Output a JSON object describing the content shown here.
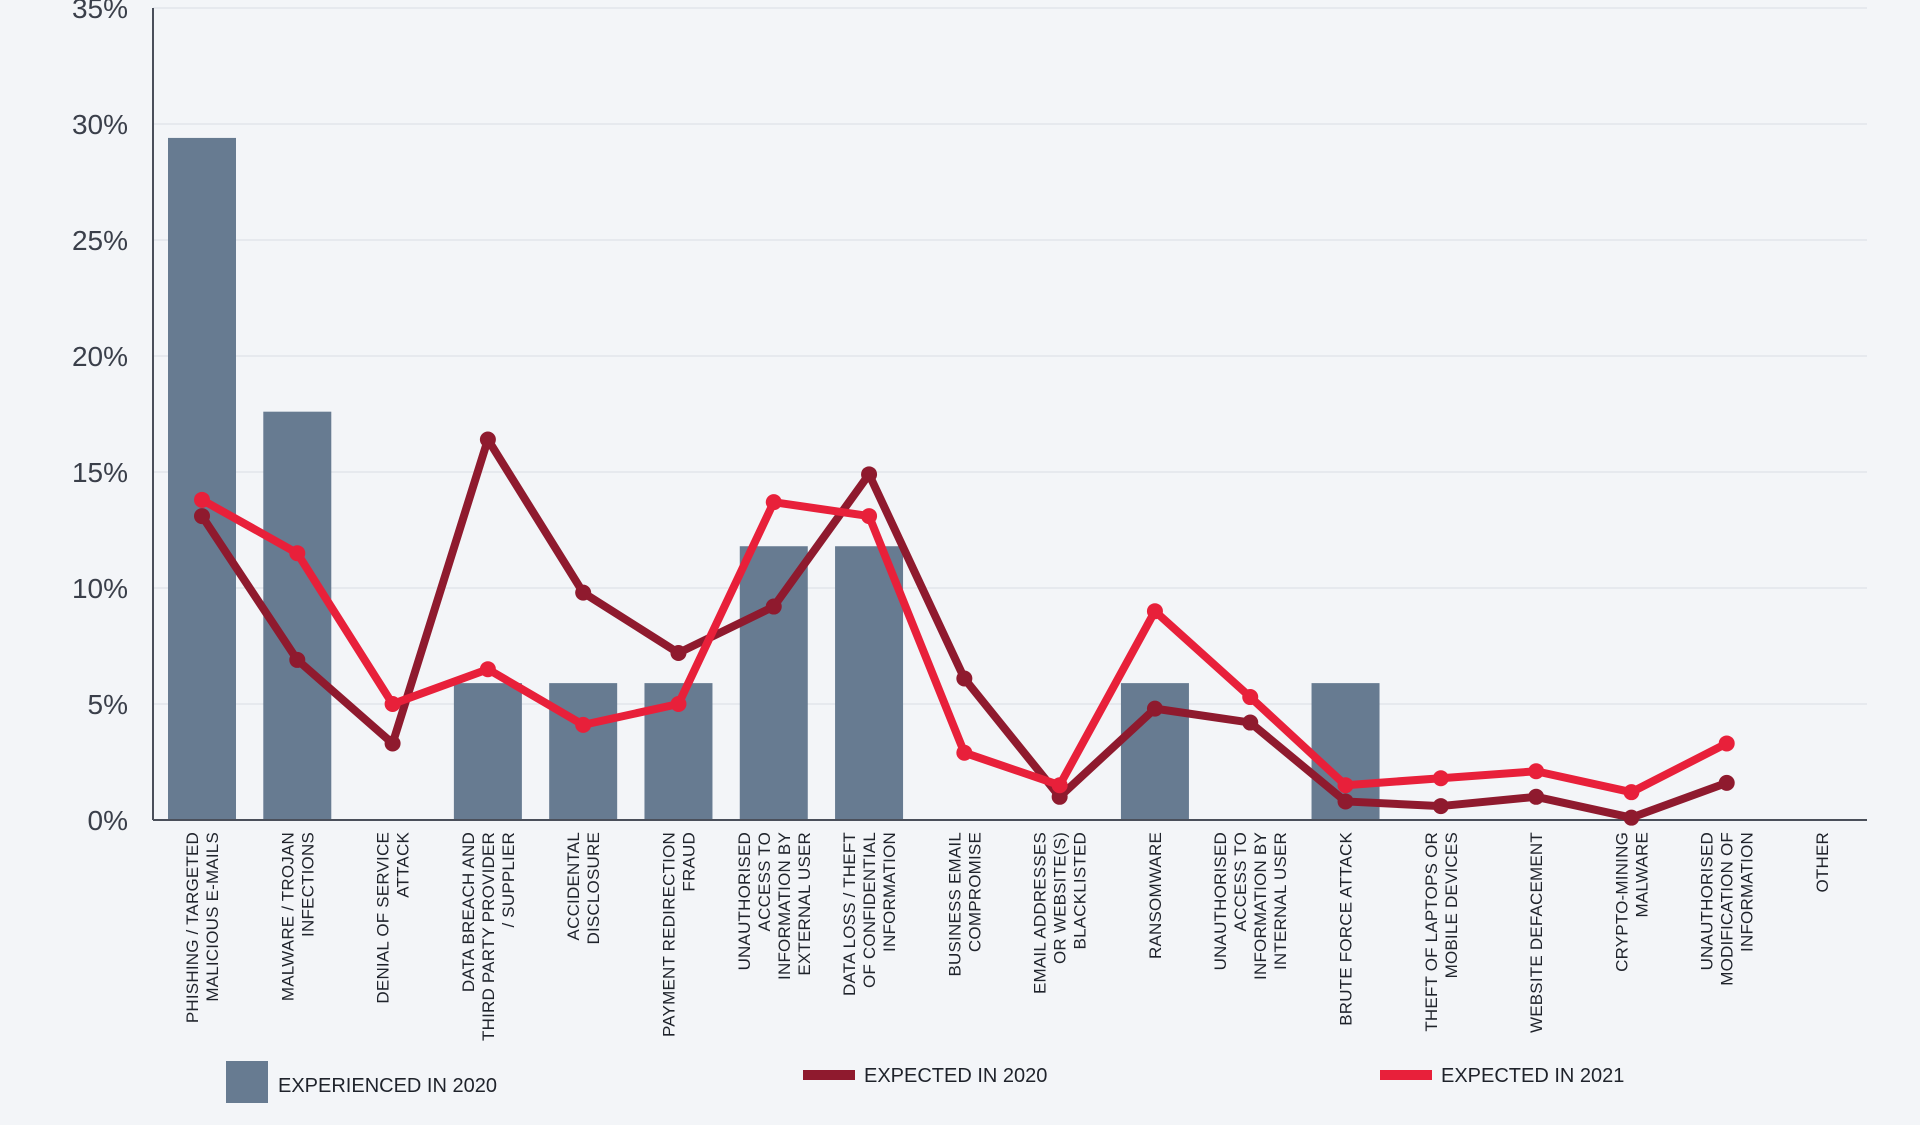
{
  "chart_data": {
    "type": "bar",
    "title": "",
    "xlabel": "",
    "ylabel": "",
    "ylim": [
      0,
      35
    ],
    "yticks": [
      "0%",
      "5%",
      "10%",
      "15%",
      "20%",
      "25%",
      "30%",
      "35%"
    ],
    "grid": true,
    "legend_position": "bottom",
    "categories": [
      [
        "PHISHING / TARGETED",
        "MALICIOUS E-MAILS"
      ],
      [
        "MALWARE / TROJAN",
        "INFECTIONS"
      ],
      [
        "DENIAL OF SERVICE",
        "ATTACK"
      ],
      [
        "DATA BREACH AND",
        "THIRD PARTY PROVIDER",
        "/ SUPPLIER"
      ],
      [
        "ACCIDENTAL",
        "DISCLOSURE"
      ],
      [
        "PAYMENT REDIRECTION",
        "FRAUD"
      ],
      [
        "UNAUTHORISED",
        "ACCESS TO",
        "INFORMATION BY",
        "EXTERNAL USER"
      ],
      [
        "DATA LOSS / THEFT",
        "OF CONFIDENTIAL",
        "INFORMATION"
      ],
      [
        "BUSINESS EMAIL",
        "COMPROMISE"
      ],
      [
        "EMAIL ADDRESSES",
        "OR WEBSITE(S)",
        "BLACKLISTED"
      ],
      [
        "RANSOMWARE"
      ],
      [
        "UNAUTHORISED",
        "ACCESS TO",
        "INFORMATION BY",
        "INTERNAL USER"
      ],
      [
        "BRUTE FORCE ATTACK"
      ],
      [
        "THEFT OF LAPTOPS OR",
        "MOBILE DEVICES"
      ],
      [
        "WEBSITE DEFACEMENT"
      ],
      [
        "CRYPTO-MINING",
        "MALWARE"
      ],
      [
        "UNAUTHORISED",
        "MODIFICATION OF",
        "INFORMATION"
      ],
      [
        "OTHER"
      ]
    ],
    "series": [
      {
        "name": "EXPERIENCED IN 2020",
        "kind": "bar",
        "color": "#677b91",
        "values": [
          29.4,
          17.6,
          0,
          5.9,
          5.9,
          5.9,
          11.8,
          11.8,
          0,
          0,
          5.9,
          0,
          5.9,
          0,
          0,
          0,
          0,
          0
        ]
      },
      {
        "name": "EXPECTED IN 2020",
        "kind": "line",
        "color": "#8f1a2e",
        "values": [
          13.1,
          6.9,
          3.3,
          16.4,
          9.8,
          7.2,
          9.2,
          14.9,
          6.1,
          1.0,
          4.8,
          4.2,
          0.8,
          0.6,
          1.0,
          0.1,
          1.6,
          null
        ]
      },
      {
        "name": "EXPECTED IN 2021",
        "kind": "line",
        "color": "#e8203a",
        "values": [
          13.8,
          11.5,
          5.0,
          6.5,
          4.1,
          5.0,
          13.7,
          13.1,
          2.9,
          1.5,
          9.0,
          5.3,
          1.5,
          1.8,
          2.1,
          1.2,
          3.3,
          null
        ]
      }
    ]
  }
}
